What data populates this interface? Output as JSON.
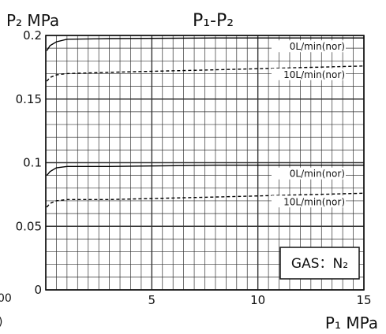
{
  "chart_data": {
    "type": "line",
    "title": "P₁-P₂",
    "ylabel": "P₂ MPa",
    "xlabel": "P₁ MPa",
    "xlim": [
      0,
      15
    ],
    "ylim": [
      0,
      0.2
    ],
    "grid": true,
    "x_ticks": [
      {
        "value": 5,
        "label": "5"
      },
      {
        "value": 10,
        "label": "10"
      },
      {
        "value": 15,
        "label": "15"
      }
    ],
    "y_ticks": [
      {
        "value": 0,
        "label": "0"
      },
      {
        "value": 0.05,
        "label": "0.05"
      },
      {
        "value": 0.1,
        "label": "0.1"
      },
      {
        "value": 0.15,
        "label": "0.15"
      },
      {
        "value": 0.2,
        "label": "0.2"
      }
    ],
    "series": [
      {
        "name": "0L/min(nor)",
        "style": "solid",
        "points": [
          [
            0.05,
            0.188
          ],
          [
            0.2,
            0.192
          ],
          [
            0.5,
            0.195
          ],
          [
            1.0,
            0.197
          ],
          [
            3,
            0.1975
          ],
          [
            8,
            0.198
          ],
          [
            15,
            0.198
          ]
        ]
      },
      {
        "name": "10L/min(nor)",
        "style": "dashed",
        "points": [
          [
            0.05,
            0.164
          ],
          [
            0.2,
            0.167
          ],
          [
            0.5,
            0.169
          ],
          [
            1.0,
            0.17
          ],
          [
            3,
            0.171
          ],
          [
            8,
            0.173
          ],
          [
            15,
            0.176
          ]
        ]
      },
      {
        "name": "0L/min(nor)",
        "style": "solid",
        "points": [
          [
            0.05,
            0.09
          ],
          [
            0.2,
            0.093
          ],
          [
            0.5,
            0.096
          ],
          [
            1.0,
            0.097
          ],
          [
            3,
            0.097
          ],
          [
            8,
            0.098
          ],
          [
            15,
            0.098
          ]
        ]
      },
      {
        "name": "10L/min(nor)",
        "style": "dashed",
        "points": [
          [
            0.05,
            0.065
          ],
          [
            0.2,
            0.068
          ],
          [
            0.5,
            0.07
          ],
          [
            1.0,
            0.071
          ],
          [
            3,
            0.071
          ],
          [
            8,
            0.073
          ],
          [
            15,
            0.076
          ]
        ]
      }
    ],
    "annotation": "GAS：N₂"
  },
  "clipped": {
    "left_fragment_1": "00",
    "left_fragment_2": ")"
  },
  "colors": {
    "grid": "#333333",
    "line": "#000000",
    "background": "#ffffff"
  }
}
